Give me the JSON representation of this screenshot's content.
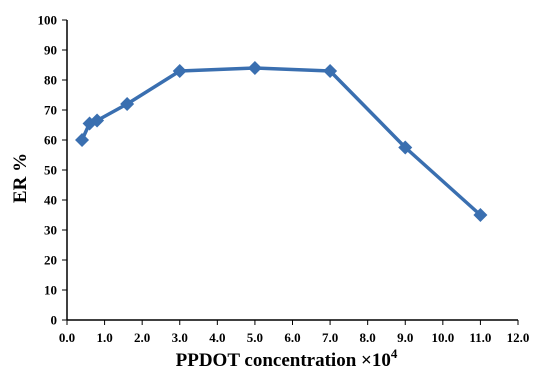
{
  "chart_data": {
    "type": "line",
    "xlabel": "PPDOT concentration ×10",
    "xlabel_superscript": "4",
    "ylabel": "ER %",
    "xlim": [
      0.0,
      12.0
    ],
    "ylim": [
      0,
      100
    ],
    "xticks": [
      "0.0",
      "1.0",
      "2.0",
      "3.0",
      "4.0",
      "5.0",
      "6.0",
      "7.0",
      "8.0",
      "9.0",
      "10.0",
      "11.0",
      "12.0"
    ],
    "yticks": [
      "0",
      "10",
      "20",
      "30",
      "40",
      "50",
      "60",
      "70",
      "80",
      "90",
      "100"
    ],
    "grid": false,
    "series": [
      {
        "color": "#3a6fb0",
        "marker": "diamond",
        "x": [
          0.4,
          0.6,
          0.8,
          1.6,
          3.0,
          5.0,
          7.0,
          9.0,
          11.0
        ],
        "y": [
          60,
          65.5,
          66.5,
          72,
          83,
          84,
          83,
          57.5,
          35
        ]
      }
    ]
  }
}
